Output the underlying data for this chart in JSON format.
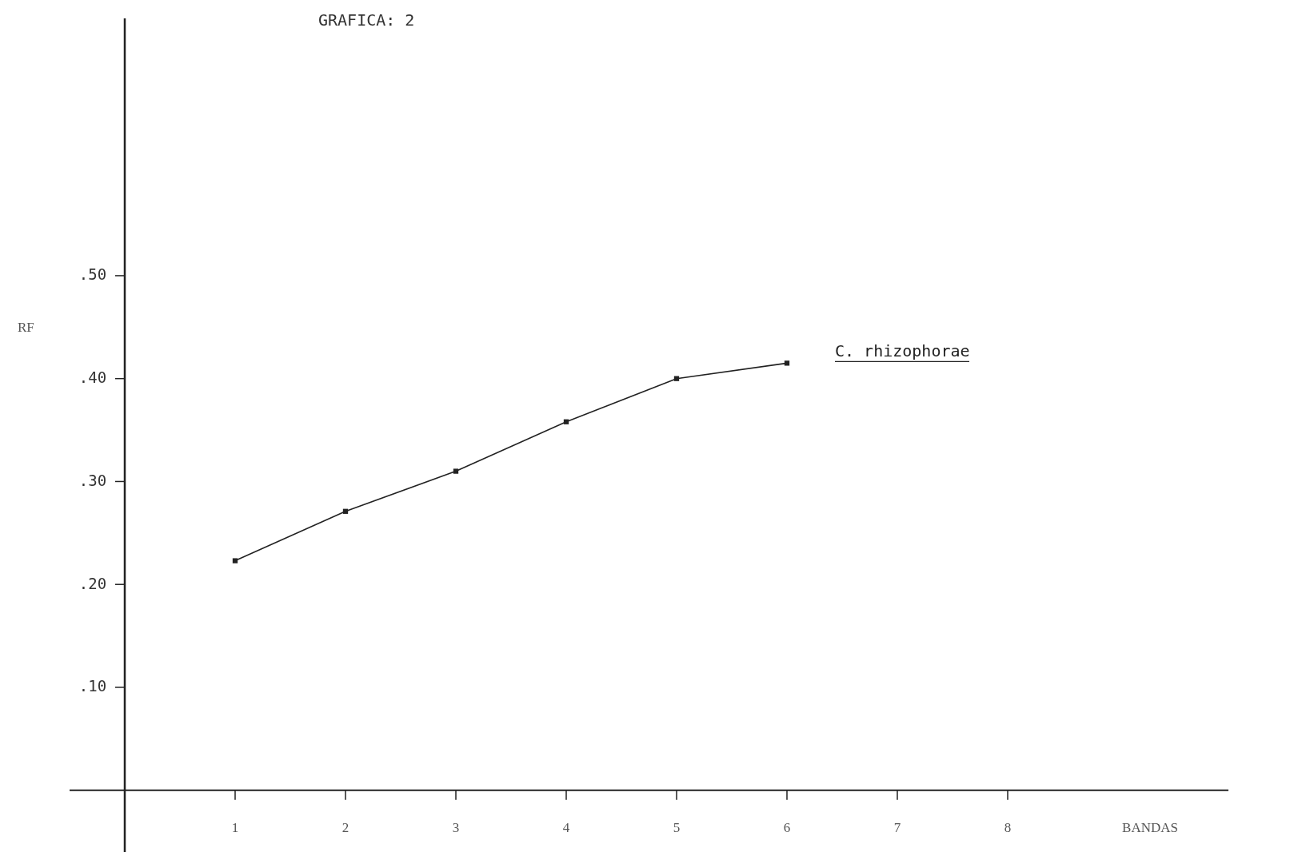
{
  "chart_data": {
    "type": "line",
    "title": "GRAFICA: 2",
    "xlabel": "BANDAS",
    "ylabel": "RF",
    "x": [
      1,
      2,
      3,
      4,
      5,
      6
    ],
    "series": [
      {
        "name": "C. rhizophorae",
        "color": "#222222",
        "values": [
          0.223,
          0.271,
          0.31,
          0.358,
          0.4,
          0.415
        ]
      }
    ],
    "xlim": [
      -0.5,
      10
    ],
    "xticks": [
      1,
      2,
      3,
      4,
      5,
      6,
      7,
      8
    ],
    "ylim": [
      -0.06,
      0.75
    ],
    "yticks": [
      {
        "value": 0.1,
        "label": ".10"
      },
      {
        "value": 0.2,
        "label": ".20"
      },
      {
        "value": 0.3,
        "label": ".30"
      },
      {
        "value": 0.4,
        "label": ".40"
      },
      {
        "value": 0.5,
        "label": ".50"
      }
    ],
    "grid": false,
    "marker": "square",
    "line_style": "solid"
  }
}
